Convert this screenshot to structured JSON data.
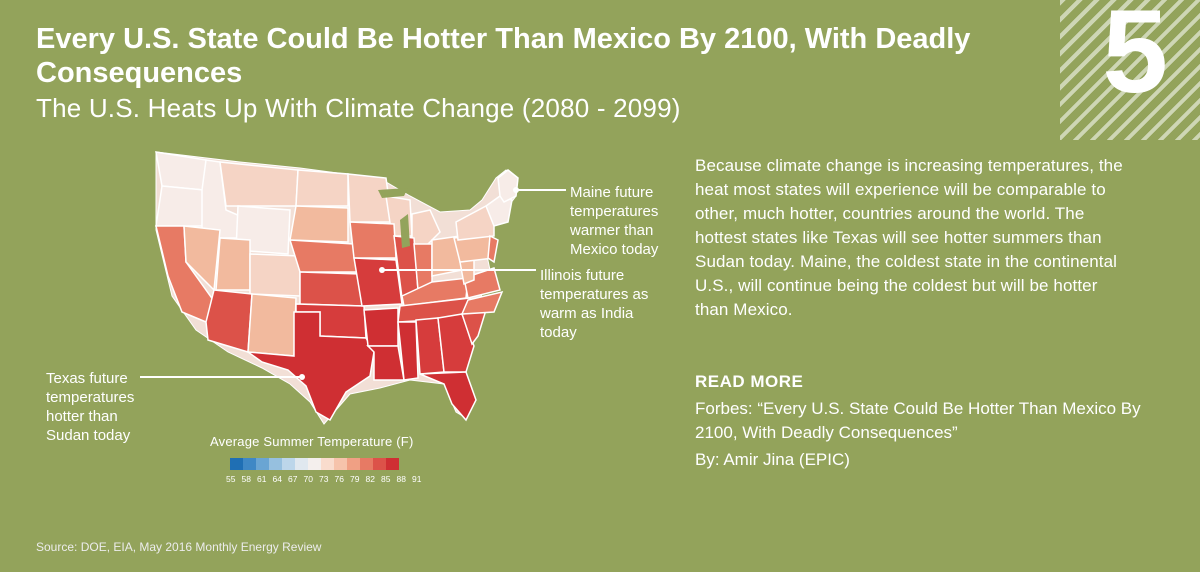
{
  "title": "Every U.S. State Could Be Hotter Than Mexico By 2100, With Deadly Consequences",
  "subtitle": "The U.S. Heats Up With Climate Change (2080 - 2099)",
  "badge_number": "5",
  "annotations": {
    "maine": "Maine future temperatures warmer than Mexico today",
    "illinois": "Illinois future temperatures as warm as India today",
    "texas": "Texas future temperatures hotter than Sudan today"
  },
  "body_text": "Because climate change is increasing temperatures, the heat most states will experience will be comparable to other, much hotter, countries around the world. The hottest states like Texas will see hotter summers than Sudan today. Maine, the coldest state in the continental U.S., will continue being the coldest but will be hotter than Mexico.",
  "read_more": {
    "label": "READ MORE",
    "article": "Forbes: “Every U.S. State Could Be Hotter Than Mexico By 2100, With Deadly Consequences”",
    "byline": "By: Amir Jina (EPIC)"
  },
  "legend": {
    "title": "Average Summer Temperature (F)",
    "ticks": [
      "55",
      "58",
      "61",
      "64",
      "67",
      "70",
      "73",
      "76",
      "79",
      "82",
      "85",
      "88",
      "91"
    ],
    "colors": [
      "#1f6fb4",
      "#3f88c5",
      "#6aa5d3",
      "#96c0df",
      "#bcd6ea",
      "#e0e8ef",
      "#f4efed",
      "#f9dccd",
      "#f6c3ab",
      "#f0a084",
      "#e77a64",
      "#dc5249",
      "#cf2f33"
    ]
  },
  "source": "Source: DOE, EIA, May 2016 Monthly Energy Review"
}
